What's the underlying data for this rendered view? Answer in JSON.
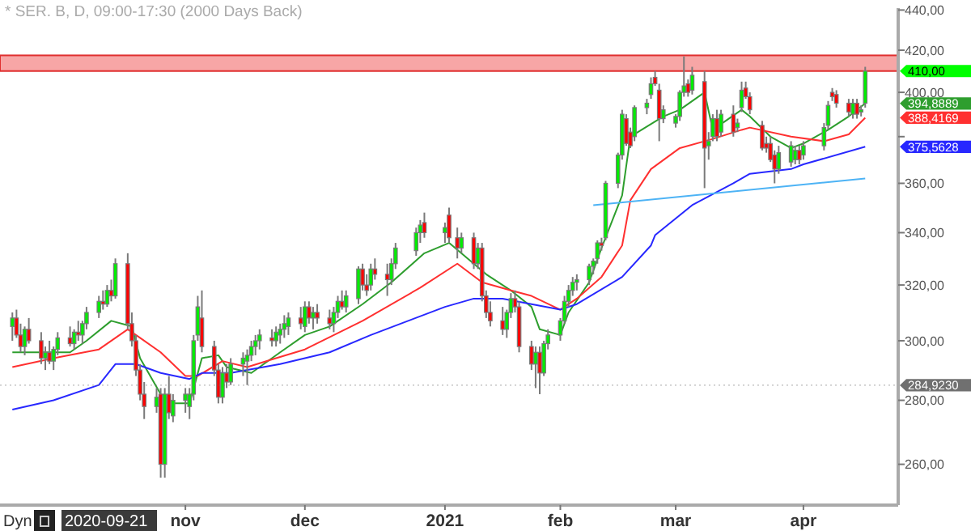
{
  "chart_data": {
    "type": "candlestick",
    "title": "* SER. B, D, 09:00-17:30 (2000 Days Back)",
    "log": "y",
    "x": [
      "2020-09-21",
      "2020-09-22",
      "2020-09-23",
      "2020-09-24",
      "2020-09-25",
      "2020-09-28",
      "2020-09-29",
      "2020-09-30",
      "2020-10-01",
      "2020-10-02",
      "2020-10-05",
      "2020-10-06",
      "2020-10-07",
      "2020-10-08",
      "2020-10-09",
      "2020-10-12",
      "2020-10-13",
      "2020-10-14",
      "2020-10-15",
      "2020-10-16",
      "2020-10-19",
      "2020-10-20",
      "2020-10-21",
      "2020-10-22",
      "2020-10-23",
      "2020-10-26",
      "2020-10-27",
      "2020-10-28",
      "2020-10-29",
      "2020-10-30",
      "2020-11-02",
      "2020-11-03",
      "2020-11-04",
      "2020-11-05",
      "2020-11-06",
      "2020-11-09",
      "2020-11-10",
      "2020-11-11",
      "2020-11-12",
      "2020-11-13",
      "2020-11-16",
      "2020-11-17",
      "2020-11-18",
      "2020-11-19",
      "2020-11-20",
      "2020-11-23",
      "2020-11-24",
      "2020-11-25",
      "2020-11-26",
      "2020-11-27",
      "2020-11-30",
      "2020-12-01",
      "2020-12-02",
      "2020-12-03",
      "2020-12-04",
      "2020-12-07",
      "2020-12-08",
      "2020-12-09",
      "2020-12-10",
      "2020-12-11",
      "2020-12-14",
      "2020-12-15",
      "2020-12-16",
      "2020-12-17",
      "2020-12-18",
      "2020-12-21",
      "2020-12-22",
      "2020-12-23",
      "2020-12-28",
      "2020-12-29",
      "2020-12-30",
      "2021-01-04",
      "2021-01-05",
      "2021-01-07",
      "2021-01-08",
      "2021-01-11",
      "2021-01-12",
      "2021-01-13",
      "2021-01-14",
      "2021-01-15",
      "2021-01-18",
      "2021-01-19",
      "2021-01-20",
      "2021-01-21",
      "2021-01-22",
      "2021-01-25",
      "2021-01-26",
      "2021-01-27",
      "2021-01-28",
      "2021-01-29",
      "2021-02-01",
      "2021-02-02",
      "2021-02-03",
      "2021-02-04",
      "2021-02-05",
      "2021-02-08",
      "2021-02-09",
      "2021-02-10",
      "2021-02-11",
      "2021-02-12",
      "2021-02-15",
      "2021-02-16",
      "2021-02-17",
      "2021-02-18",
      "2021-02-19",
      "2021-02-22",
      "2021-02-23",
      "2021-02-24",
      "2021-02-25",
      "2021-02-26",
      "2021-03-01",
      "2021-03-02",
      "2021-03-03",
      "2021-03-04",
      "2021-03-05",
      "2021-03-08",
      "2021-03-09",
      "2021-03-10",
      "2021-03-11",
      "2021-03-12",
      "2021-03-15",
      "2021-03-16",
      "2021-03-17",
      "2021-03-18",
      "2021-03-19",
      "2021-03-22",
      "2021-03-23",
      "2021-03-24",
      "2021-03-25",
      "2021-03-26",
      "2021-03-29",
      "2021-03-30",
      "2021-03-31",
      "2021-04-01",
      "2021-04-06",
      "2021-04-07",
      "2021-04-08",
      "2021-04-09",
      "2021-04-12",
      "2021-04-13",
      "2021-04-14",
      "2021-04-15",
      "2021-04-16"
    ],
    "ohlc": [
      [
        305,
        310,
        300,
        308
      ],
      [
        308,
        311,
        301,
        302
      ],
      [
        302,
        306,
        296,
        298
      ],
      [
        298,
        305,
        295,
        304
      ],
      [
        304,
        308,
        299,
        300
      ],
      [
        300,
        303,
        292,
        294
      ],
      [
        294,
        298,
        290,
        296
      ],
      [
        296,
        300,
        292,
        293
      ],
      [
        293,
        298,
        290,
        297
      ],
      [
        297,
        303,
        295,
        301
      ],
      [
        301,
        305,
        298,
        299
      ],
      [
        299,
        304,
        297,
        303
      ],
      [
        303,
        307,
        300,
        302
      ],
      [
        302,
        307,
        299,
        306
      ],
      [
        306,
        312,
        304,
        310
      ],
      [
        310,
        316,
        308,
        314
      ],
      [
        314,
        318,
        311,
        313
      ],
      [
        313,
        320,
        312,
        318
      ],
      [
        318,
        322,
        314,
        316
      ],
      [
        316,
        330,
        315,
        328
      ],
      [
        328,
        332,
        304,
        306
      ],
      [
        306,
        310,
        298,
        300
      ],
      [
        300,
        302,
        288,
        290
      ],
      [
        290,
        292,
        280,
        282
      ],
      [
        282,
        286,
        274,
        278
      ],
      [
        278,
        284,
        276,
        281
      ],
      [
        282,
        284,
        256,
        260
      ],
      [
        260,
        284,
        256,
        282
      ],
      [
        282,
        288,
        274,
        276
      ],
      [
        275,
        282,
        273,
        280
      ],
      [
        280,
        284,
        276,
        282
      ],
      [
        278,
        284,
        274,
        282
      ],
      [
        282,
        302,
        280,
        300
      ],
      [
        302,
        316,
        300,
        312
      ],
      [
        308,
        318,
        296,
        298
      ],
      [
        298,
        300,
        288,
        290
      ],
      [
        290,
        292,
        279,
        281
      ],
      [
        281,
        291,
        279,
        289
      ],
      [
        289,
        292,
        284,
        286
      ],
      [
        286,
        294,
        285,
        292
      ],
      [
        292,
        296,
        288,
        294
      ],
      [
        293,
        297,
        285,
        295
      ],
      [
        295,
        300,
        293,
        298
      ],
      [
        298,
        302,
        295,
        300
      ],
      [
        300,
        304,
        297,
        302
      ],
      [
        301,
        304,
        298,
        300
      ],
      [
        300,
        305,
        298,
        303
      ],
      [
        302,
        306,
        299,
        304
      ],
      [
        304,
        309,
        301,
        306
      ],
      [
        305,
        310,
        302,
        308
      ],
      [
        308,
        312,
        304,
        306
      ],
      [
        305,
        314,
        303,
        312
      ],
      [
        312,
        314,
        306,
        308
      ],
      [
        308,
        312,
        304,
        310
      ],
      [
        310,
        313,
        306,
        308
      ],
      [
        308,
        311,
        304,
        306
      ],
      [
        306,
        312,
        303,
        310
      ],
      [
        310,
        316,
        308,
        314
      ],
      [
        314,
        318,
        311,
        312
      ],
      [
        312,
        318,
        310,
        316
      ],
      [
        315,
        327,
        313,
        326
      ],
      [
        326,
        328,
        318,
        320
      ],
      [
        320,
        324,
        316,
        318
      ],
      [
        320,
        328,
        318,
        326
      ],
      [
        326,
        330,
        322,
        324
      ],
      [
        324,
        328,
        316,
        322
      ],
      [
        322,
        330,
        320,
        328
      ],
      [
        328,
        336,
        326,
        334
      ],
      [
        333,
        342,
        331,
        340
      ],
      [
        340,
        345,
        336,
        343
      ],
      [
        344,
        348,
        338,
        340
      ],
      [
        340,
        344,
        336,
        342
      ],
      [
        347,
        350,
        336,
        338
      ],
      [
        338,
        342,
        330,
        334
      ],
      [
        334,
        340,
        332,
        338
      ],
      [
        338,
        340,
        326,
        328
      ],
      [
        328,
        336,
        326,
        334
      ],
      [
        334,
        336,
        314,
        316
      ],
      [
        316,
        318,
        308,
        310
      ],
      [
        310,
        314,
        305,
        307
      ],
      [
        307,
        312,
        302,
        304
      ],
      [
        304,
        311,
        301,
        310
      ],
      [
        310,
        317,
        308,
        315
      ],
      [
        315,
        318,
        310,
        312
      ],
      [
        312,
        314,
        296,
        298
      ],
      [
        298,
        300,
        290,
        292
      ],
      [
        292,
        298,
        284,
        296
      ],
      [
        296,
        298,
        282,
        289
      ],
      [
        289,
        300,
        288,
        299
      ],
      [
        299,
        304,
        297,
        302
      ],
      [
        302,
        308,
        300,
        307
      ],
      [
        307,
        316,
        306,
        314
      ],
      [
        314,
        320,
        312,
        318
      ],
      [
        318,
        323,
        316,
        321
      ],
      [
        321,
        324,
        318,
        322
      ],
      [
        322,
        328,
        320,
        327
      ],
      [
        327,
        330,
        324,
        329
      ],
      [
        330,
        337,
        328,
        336
      ],
      [
        336,
        338,
        333,
        335
      ],
      [
        338,
        361,
        337,
        360
      ],
      [
        360,
        373,
        358,
        372
      ],
      [
        372,
        392,
        370,
        390
      ],
      [
        388,
        390,
        376,
        377
      ],
      [
        382,
        384,
        375,
        376
      ],
      [
        380,
        394,
        378,
        393
      ],
      [
        393,
        397,
        390,
        395
      ],
      [
        399,
        407,
        397,
        404
      ],
      [
        407,
        410,
        403,
        404
      ],
      [
        401,
        404,
        378,
        388
      ],
      [
        388,
        394,
        386,
        392
      ],
      [
        386,
        390,
        384,
        389
      ],
      [
        389,
        401,
        387,
        400
      ],
      [
        400,
        417,
        398,
        403
      ],
      [
        404,
        406,
        398,
        400
      ],
      [
        401,
        412,
        399,
        408
      ],
      [
        405,
        410,
        358,
        375
      ],
      [
        376,
        382,
        370,
        378
      ],
      [
        380,
        390,
        378,
        388
      ],
      [
        388,
        392,
        378,
        380
      ],
      [
        382,
        392,
        380,
        390
      ],
      [
        390,
        394,
        380,
        382
      ],
      [
        384,
        388,
        382,
        386
      ],
      [
        393,
        405,
        391,
        401
      ],
      [
        402,
        405,
        397,
        398
      ],
      [
        398,
        400,
        390,
        392
      ],
      [
        385,
        387,
        374,
        375
      ],
      [
        377,
        380,
        373,
        375
      ],
      [
        377,
        380,
        369,
        370
      ],
      [
        372,
        374,
        360,
        366
      ],
      [
        366,
        376,
        364,
        373
      ],
      [
        369,
        378,
        367,
        376
      ],
      [
        370,
        376,
        368,
        374
      ],
      [
        374,
        376,
        368,
        370
      ],
      [
        372,
        378,
        370,
        376
      ],
      [
        376,
        386,
        374,
        384
      ],
      [
        385,
        396,
        383,
        394
      ],
      [
        400,
        402,
        396,
        398
      ],
      [
        399,
        401,
        393,
        395
      ],
      [
        395,
        397,
        389,
        391
      ],
      [
        390,
        397,
        388,
        395
      ],
      [
        395,
        397,
        388,
        390
      ],
      [
        391,
        394,
        389,
        392
      ],
      [
        395,
        412,
        393,
        410
      ]
    ],
    "series": [
      {
        "type": "line",
        "color": "#2e9e2e",
        "x": [
          "2020-09-21",
          "2020-09-28",
          "2020-10-05",
          "2020-10-09",
          "2020-10-15",
          "2020-10-20",
          "2020-10-22",
          "2020-10-27",
          "2020-10-30",
          "2020-11-03",
          "2020-11-06",
          "2020-11-10",
          "2020-11-12",
          "2020-11-18",
          "2020-11-25",
          "2020-12-01",
          "2020-12-07",
          "2020-12-15",
          "2020-12-22",
          "2020-12-30",
          "2021-01-05",
          "2021-01-14",
          "2021-01-20",
          "2021-01-25",
          "2021-01-27",
          "2021-02-01",
          "2021-02-03",
          "2021-02-08",
          "2021-02-11",
          "2021-02-16",
          "2021-02-18",
          "2021-02-26",
          "2021-03-02",
          "2021-03-08",
          "2021-03-10",
          "2021-03-17",
          "2021-03-19",
          "2021-03-24",
          "2021-03-29",
          "2021-04-01",
          "2021-04-07",
          "2021-04-12",
          "2021-04-16"
        ],
        "values": [
          296,
          296,
          296,
          300,
          307,
          305,
          294,
          282,
          279,
          279,
          294,
          295,
          291,
          289,
          296,
          302,
          305,
          313,
          321,
          332,
          336,
          324,
          318,
          312,
          304,
          302,
          310,
          321,
          334,
          355,
          380,
          389,
          392,
          400,
          383,
          392,
          389,
          380,
          375,
          377,
          383,
          389,
          394.8889
        ]
      },
      {
        "type": "line",
        "color": "#ff3030",
        "x": [
          "2020-09-21",
          "2020-10-01",
          "2020-10-12",
          "2020-10-19",
          "2020-10-22",
          "2020-10-27",
          "2020-11-02",
          "2020-11-05",
          "2020-11-11",
          "2020-11-17",
          "2020-11-24",
          "2020-12-01",
          "2020-12-15",
          "2020-12-29",
          "2021-01-07",
          "2021-01-13",
          "2021-01-20",
          "2021-01-25",
          "2021-02-01",
          "2021-02-05",
          "2021-02-11",
          "2021-02-16",
          "2021-02-18",
          "2021-02-23",
          "2021-03-02",
          "2021-03-10",
          "2021-03-17",
          "2021-03-19",
          "2021-03-29",
          "2021-04-06",
          "2021-04-12",
          "2021-04-16"
        ],
        "values": [
          291,
          294,
          297,
          304,
          301,
          296,
          288,
          288,
          293,
          291,
          294,
          297,
          307,
          319,
          328,
          321,
          318,
          316,
          311,
          315,
          323,
          335,
          353,
          366,
          375,
          379,
          383,
          384,
          380,
          378,
          381,
          388.4169
        ]
      },
      {
        "type": "line",
        "color": "#2828ff",
        "x": [
          "2020-09-21",
          "2020-10-01",
          "2020-10-12",
          "2020-10-16",
          "2020-10-21",
          "2020-10-27",
          "2020-11-03",
          "2020-11-06",
          "2020-11-13",
          "2020-11-25",
          "2020-12-07",
          "2020-12-17",
          "2021-01-04",
          "2021-01-11",
          "2021-01-18",
          "2021-01-25",
          "2021-02-01",
          "2021-02-05",
          "2021-02-16",
          "2021-02-23",
          "2021-02-24",
          "2021-03-05",
          "2021-03-15",
          "2021-03-19",
          "2021-03-29",
          "2021-04-01",
          "2021-04-16"
        ],
        "values": [
          277,
          280,
          285,
          292,
          292,
          289,
          287,
          289,
          289,
          292,
          296,
          302,
          312,
          315,
          315,
          313,
          311,
          313,
          323,
          335,
          339,
          351,
          360,
          364,
          366,
          368,
          375.5628
        ]
      },
      {
        "type": "line",
        "color": "#4db3f5",
        "x": [
          "2021-02-09",
          "2021-04-16"
        ],
        "values": [
          351,
          362
        ]
      }
    ],
    "bands": [
      {
        "axis": "y",
        "from": 410,
        "to": 417.5,
        "color": "#f7a6a6"
      }
    ],
    "ylim": [
      248,
      441
    ],
    "yticks": [
      {
        "value": 260,
        "label": "260,00"
      },
      {
        "value": 280,
        "label": "280,00"
      },
      {
        "value": 300,
        "label": "300,00"
      },
      {
        "value": 320,
        "label": "320,00"
      },
      {
        "value": 340,
        "label": "340,00"
      },
      {
        "value": 360,
        "label": "360,00"
      },
      {
        "value": 380,
        "label": null
      },
      {
        "value": 400,
        "label": "400,00"
      },
      {
        "value": 420,
        "label": "420,00"
      },
      {
        "value": 440,
        "label": "440,00"
      }
    ],
    "xticks": [
      {
        "value": "2020-11-02",
        "label": "nov"
      },
      {
        "value": "2020-12-01",
        "label": "dec"
      },
      {
        "value": "2021-01-04",
        "label": "2021"
      },
      {
        "value": "2021-02-01",
        "label": "feb"
      },
      {
        "value": "2021-03-01",
        "label": "mar"
      },
      {
        "value": "2021-04-01",
        "label": "apr"
      }
    ],
    "xlim": [
      "2020-09-18",
      "2021-04-24"
    ],
    "ref_lines": [
      {
        "axis": "y",
        "value": 284.923,
        "label": "284,9230",
        "color": "#707070",
        "line_style": "dotted"
      }
    ],
    "annotations": [
      "Dyn",
      "2020-09-21",
      "410,00",
      "394,8889",
      "388,4169",
      "375,5628"
    ]
  }
}
